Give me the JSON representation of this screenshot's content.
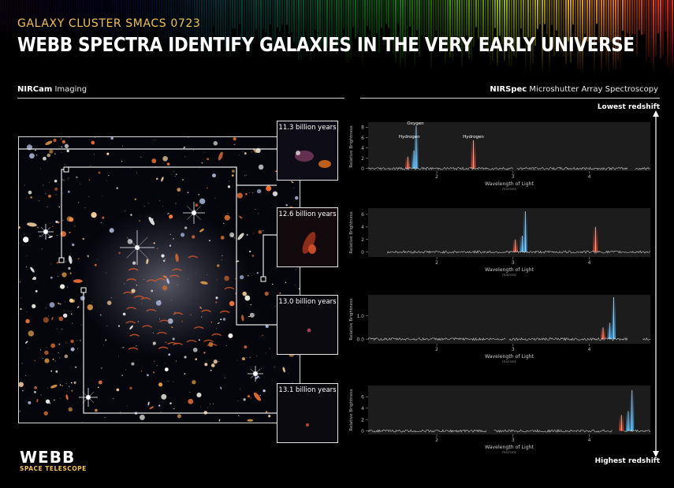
{
  "header": {
    "kicker": "GALAXY CLUSTER SMACS 0723",
    "title": "WEBB SPECTRA IDENTIFY GALAXIES IN THE VERY EARLY UNIVERSE"
  },
  "imaging": {
    "instrument": "NIRCam",
    "mode": "Imaging"
  },
  "spectroscopy": {
    "instrument": "NIRSpec",
    "mode": "Microshutter Array Spectroscopy"
  },
  "redshift_axis": {
    "top_label": "Lowest redshift",
    "bottom_label": "Highest redshift"
  },
  "insets": [
    {
      "label": "11.3 billion years"
    },
    {
      "label": "12.6 billion years"
    },
    {
      "label": "13.0 billion years"
    },
    {
      "label": "13.1 billion years"
    }
  ],
  "logo": {
    "name": "WEBB",
    "subtitle": "SPACE TELESCOPE"
  },
  "colors": {
    "hydrogen": "#e0452b",
    "oxygen": "#3a9ee0",
    "accent": "#f3c14b",
    "trace": "#d8d8d8"
  },
  "chart_data": [
    {
      "type": "line",
      "age": "11.3 billion years",
      "xlabel": "Wavelength of Light",
      "xunit": "microns",
      "ylabel": "Relative Brightness",
      "xlim": [
        1.1,
        4.8
      ],
      "ylim": [
        -0.5,
        9
      ],
      "xticks": [
        2,
        3,
        4
      ],
      "yticks": [
        0,
        2,
        4,
        6,
        8
      ],
      "line_labels": [
        {
          "text": "Hydrogen",
          "x": 1.64
        },
        {
          "text": "Oxygen",
          "x": 1.72
        },
        {
          "text": "Hydrogen",
          "x": 2.48
        }
      ],
      "lines": [
        {
          "x": 1.62,
          "height": 2.3,
          "element": "hydrogen"
        },
        {
          "x": 1.7,
          "height": 3.5,
          "element": "oxygen"
        },
        {
          "x": 1.73,
          "height": 8.3,
          "element": "oxygen"
        },
        {
          "x": 2.48,
          "height": 5.5,
          "element": "hydrogen"
        }
      ],
      "trace_segments": [
        [
          1.1,
          3.0
        ],
        [
          3.05,
          4.5
        ],
        [
          4.6,
          4.8
        ]
      ]
    },
    {
      "type": "line",
      "age": "12.6 billion years",
      "xlabel": "Wavelength of Light",
      "xunit": "microns",
      "ylabel": "Relative Brightness",
      "xlim": [
        1.1,
        4.8
      ],
      "ylim": [
        -0.8,
        7
      ],
      "xticks": [
        2,
        3,
        4
      ],
      "yticks": [
        0,
        2,
        4,
        6
      ],
      "lines": [
        {
          "x": 3.03,
          "height": 2.0,
          "element": "hydrogen"
        },
        {
          "x": 3.12,
          "height": 2.6,
          "element": "oxygen"
        },
        {
          "x": 3.16,
          "height": 6.5,
          "element": "oxygen"
        },
        {
          "x": 4.08,
          "height": 4.0,
          "element": "hydrogen"
        }
      ],
      "trace_segments": [
        [
          1.35,
          4.8
        ]
      ]
    },
    {
      "type": "line",
      "age": "13.0 billion years",
      "xlabel": "Wavelength of Light",
      "xunit": "microns",
      "ylabel": "Relative Brightness",
      "xlim": [
        1.1,
        4.8
      ],
      "ylim": [
        -0.2,
        1.9
      ],
      "xticks": [
        2,
        3,
        4
      ],
      "yticks": [
        0.0,
        1.0
      ],
      "ytick_labels": [
        "0.0",
        "1.0"
      ],
      "lines": [
        {
          "x": 4.18,
          "height": 0.5,
          "element": "hydrogen"
        },
        {
          "x": 4.27,
          "height": 0.7,
          "element": "oxygen"
        },
        {
          "x": 4.32,
          "height": 1.8,
          "element": "oxygen"
        }
      ],
      "trace_segments": [
        [
          1.1,
          2.9
        ],
        [
          2.95,
          4.5
        ],
        [
          4.7,
          4.8
        ]
      ]
    },
    {
      "type": "line",
      "age": "13.1 billion years",
      "xlabel": "Wavelength of Light",
      "xunit": "microns",
      "ylabel": "Relative Brightness",
      "xlim": [
        1.1,
        4.8
      ],
      "ylim": [
        -0.6,
        8
      ],
      "xticks": [
        2,
        3,
        4
      ],
      "yticks": [
        0,
        2,
        4,
        6
      ],
      "lines": [
        {
          "x": 4.42,
          "height": 2.8,
          "element": "hydrogen"
        },
        {
          "x": 4.51,
          "height": 3.5,
          "element": "oxygen"
        },
        {
          "x": 4.56,
          "height": 7.2,
          "element": "oxygen"
        }
      ],
      "trace_segments": [
        [
          1.1,
          2.65
        ],
        [
          2.75,
          4.3
        ],
        [
          4.45,
          4.8
        ]
      ]
    }
  ]
}
